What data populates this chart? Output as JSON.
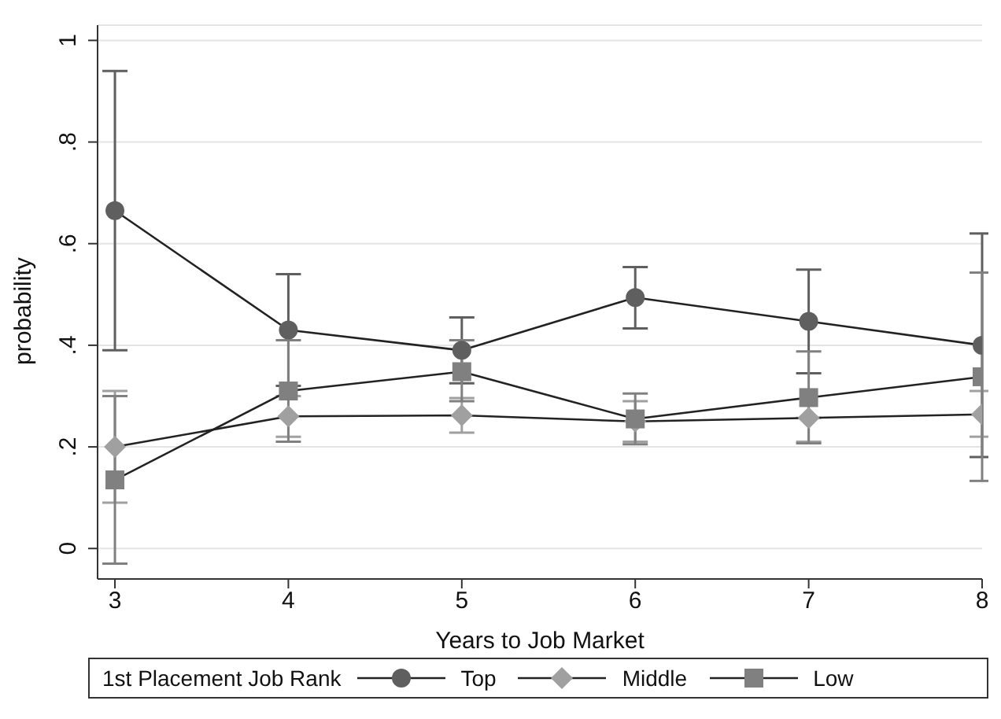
{
  "chart_data": {
    "type": "line",
    "xlabel": "Years to Job Market",
    "ylabel": "probability",
    "legend_title": "1st Placement Job Rank",
    "x": [
      3,
      4,
      5,
      6,
      7,
      8
    ],
    "series": [
      {
        "name": "Top",
        "color": "#5f5f5f",
        "marker": "circle",
        "values": [
          0.665,
          0.43,
          0.39,
          0.494,
          0.447,
          0.4
        ],
        "errors": [
          [
            0.39,
            0.94
          ],
          [
            0.32,
            0.54
          ],
          [
            0.325,
            0.455
          ],
          [
            0.433,
            0.554
          ],
          [
            0.345,
            0.549
          ],
          [
            0.18,
            0.62
          ]
        ]
      },
      {
        "name": "Middle",
        "color": "#a0a0a0",
        "marker": "diamond",
        "values": [
          0.2,
          0.26,
          0.262,
          0.25,
          0.257,
          0.264
        ],
        "errors": [
          [
            0.09,
            0.31
          ],
          [
            0.22,
            0.3
          ],
          [
            0.228,
            0.296
          ],
          [
            0.21,
            0.29
          ],
          [
            0.21,
            0.257
          ],
          [
            0.22,
            0.31
          ]
        ]
      },
      {
        "name": "Low",
        "color": "#808080",
        "marker": "square",
        "values": [
          0.135,
          0.31,
          0.348,
          0.255,
          0.297,
          0.338
        ],
        "errors": [
          [
            -0.03,
            0.3
          ],
          [
            0.21,
            0.41
          ],
          [
            0.29,
            0.41
          ],
          [
            0.205,
            0.305
          ],
          [
            0.207,
            0.388
          ],
          [
            0.133,
            0.543
          ]
        ]
      }
    ],
    "xlim": [
      2.9,
      8
    ],
    "xticks": [
      3,
      4,
      5,
      6,
      7,
      8
    ],
    "ylim": [
      -0.06,
      1.03
    ],
    "yticks": [
      0,
      {
        "value": 0.2,
        "label": ".2"
      },
      {
        "value": 0.4,
        "label": ".4"
      },
      {
        "value": 0.6,
        "label": ".6"
      },
      {
        "value": 0.8,
        "label": ".8"
      },
      1
    ],
    "grid": "y",
    "legend": "bottom",
    "line_style": "solid"
  }
}
